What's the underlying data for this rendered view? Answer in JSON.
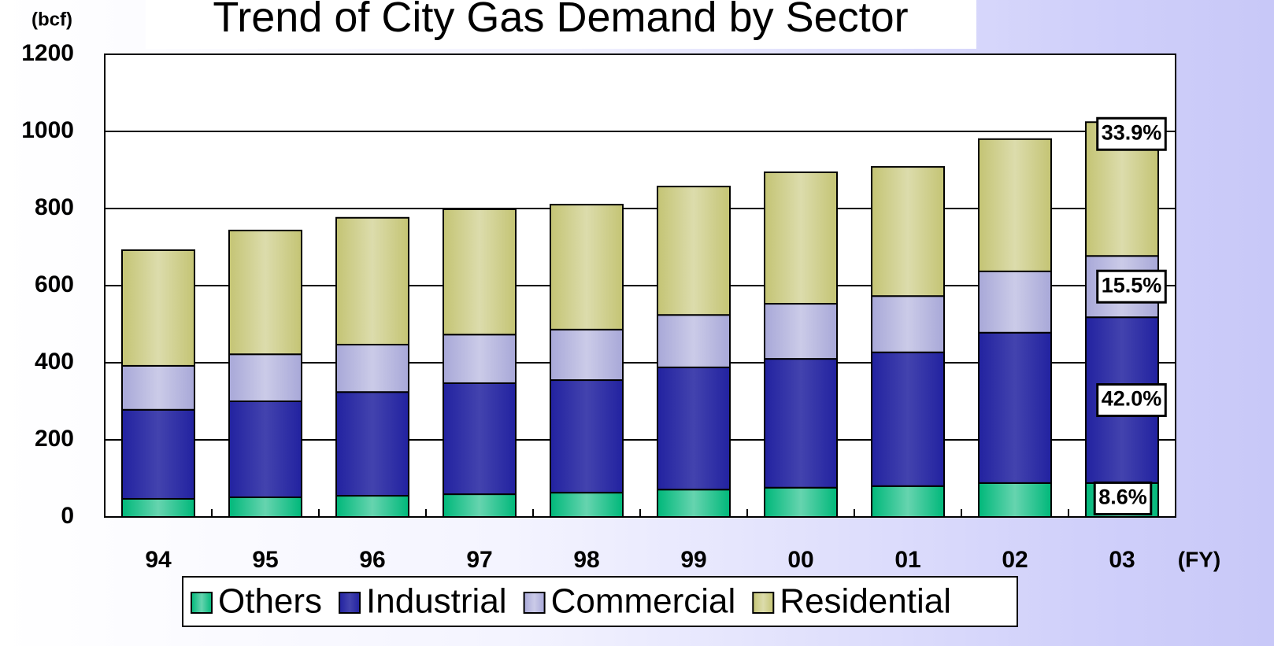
{
  "chart_data": {
    "type": "stacked_bar",
    "title": "Trend of City Gas Demand by Sector",
    "y_label": "(bcf)",
    "x_label": "(FY)",
    "categories": [
      "94",
      "95",
      "96",
      "97",
      "98",
      "99",
      "00",
      "01",
      "02",
      "03"
    ],
    "series": [
      {
        "name": "Others",
        "color": "#00b87a",
        "values": [
          47,
          51,
          55,
          59,
          63,
          71,
          76,
          80,
          88,
          88
        ]
      },
      {
        "name": "Industrial",
        "color": "#2222a0",
        "values": [
          231,
          249,
          269,
          288,
          292,
          317,
          334,
          347,
          390,
          430
        ]
      },
      {
        "name": "Commercial",
        "color": "#a8a8d8",
        "values": [
          114,
          122,
          123,
          126,
          131,
          136,
          143,
          146,
          159,
          159
        ]
      },
      {
        "name": "Residential",
        "color": "#c4c474",
        "values": [
          300,
          321,
          329,
          325,
          324,
          333,
          341,
          335,
          343,
          347
        ]
      }
    ],
    "share_labels": [
      "8.6%",
      "42.0%",
      "15.5%",
      "33.9%"
    ],
    "ylim": [
      0,
      1200
    ],
    "yticks": [
      0,
      200,
      400,
      600,
      800,
      1000,
      1200
    ],
    "grid": true,
    "legend": "bottom"
  }
}
